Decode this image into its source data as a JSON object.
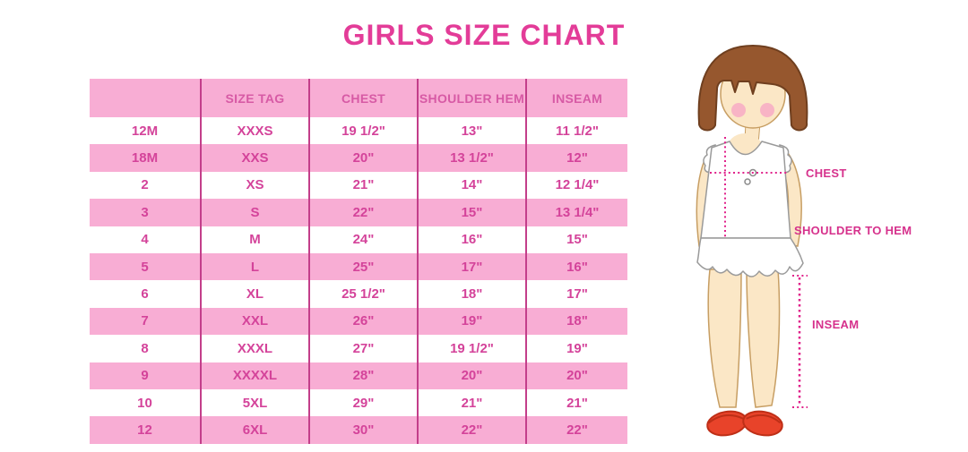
{
  "title": "GIRLS SIZE CHART",
  "chart_data": {
    "type": "table",
    "title": "GIRLS SIZE CHART",
    "columns": [
      "",
      "SIZE TAG",
      "CHEST",
      "SHOULDER HEM",
      "INSEAM"
    ],
    "rows": [
      [
        "12M",
        "XXXS",
        "19 1/2\"",
        "13\"",
        "11 1/2\""
      ],
      [
        "18M",
        "XXS",
        "20\"",
        "13 1/2\"",
        "12\""
      ],
      [
        "2",
        "XS",
        "21\"",
        "14\"",
        "12 1/4\""
      ],
      [
        "3",
        "S",
        "22\"",
        "15\"",
        "13 1/4\""
      ],
      [
        "4",
        "M",
        "24\"",
        "16\"",
        "15\""
      ],
      [
        "5",
        "L",
        "25\"",
        "17\"",
        "16\""
      ],
      [
        "6",
        "XL",
        "25 1/2\"",
        "18\"",
        "17\""
      ],
      [
        "7",
        "XXL",
        "26\"",
        "19\"",
        "18\""
      ],
      [
        "8",
        "XXXL",
        "27\"",
        "19 1/2\"",
        "19\""
      ],
      [
        "9",
        "XXXXL",
        "28\"",
        "20\"",
        "20\""
      ],
      [
        "10",
        "5XL",
        "29\"",
        "21\"",
        "21\""
      ],
      [
        "12",
        "6XL",
        "30\"",
        "22\"",
        "22\""
      ]
    ],
    "row_striping": "alternating white and pink, header pink",
    "legend_position": "none",
    "grid": "vertical dividers only"
  },
  "figure": {
    "description": "illustrated girl with measurement guide lines",
    "chest_label": "CHEST",
    "shoulder_to_hem_label": "SHOULDER TO HEM",
    "inseam_label": "INSEAM"
  },
  "colors": {
    "title_text": "#E33C98",
    "row_pink": "#F8ADD4",
    "row_white": "#FFFFFF",
    "cell_text": "#D4439A",
    "column_divider": "#C33E8A",
    "figure_label_text": "#D6318C",
    "dotted_measure_line": "#E0218A",
    "hair": "#96572E",
    "skin": "#FBE7C6",
    "blush": "#F7A8C4",
    "dress": "#FFFFFF",
    "shoes": "#E8432A"
  }
}
